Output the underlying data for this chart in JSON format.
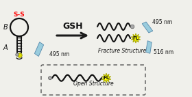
{
  "bg_color": "#f0f0eb",
  "arrow_color": "#1a1a1a",
  "gsh_text": "GSH",
  "fracture_label": "Fracture Structure",
  "open_label": "Open Structure",
  "ss_color": "#ff0000",
  "ss_text": "S-S",
  "fl_color": "#ffff00",
  "fl_text": "FL",
  "fl_edge": "#aaaa00",
  "lightning_color": "#99ccdd",
  "nm_495_right": "495 nm",
  "nm_516": "516 nm",
  "nm_495_left": "495 nm",
  "label_B": "B",
  "label_A": "A",
  "quencher_color": "#dddd00",
  "stem_color": "#111111",
  "loop_color": "#111111",
  "white": "#ffffff"
}
